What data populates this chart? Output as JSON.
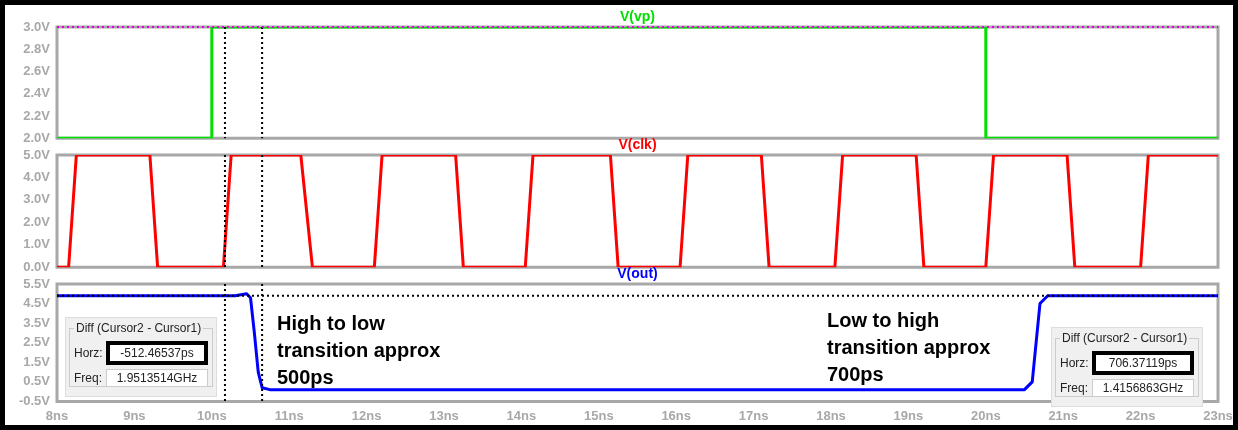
{
  "chart_data": [
    {
      "type": "step",
      "legend": "top",
      "tick_labels": "y",
      "series": [
        {
          "name": "V(vp)",
          "color": "#00e000",
          "x": [
            8,
            10,
            20,
            23
          ],
          "values": [
            2,
            3,
            2,
            2
          ]
        }
      ],
      "xlim": [
        8,
        23
      ],
      "ylim": [
        2,
        3
      ],
      "yticks": [
        {
          "value": 2,
          "label": "2.0V"
        },
        {
          "value": 2.2,
          "label": "2.2V"
        },
        {
          "value": 2.4,
          "label": "2.4V"
        },
        {
          "value": 2.6,
          "label": "2.6V"
        },
        {
          "value": 2.8,
          "label": "2.8V"
        },
        {
          "value": 3,
          "label": "3.0V"
        }
      ],
      "ref_lines": [
        {
          "axis": "x",
          "value": 10.17,
          "color": "#000000",
          "line_style": "dotted"
        },
        {
          "axis": "x",
          "value": 10.65,
          "color": "#000000",
          "line_style": "dotted"
        },
        {
          "axis": "y",
          "value": 3,
          "color": "#e000e0",
          "line_style": "dotted"
        }
      ]
    },
    {
      "type": "line",
      "legend": "top",
      "tick_labels": "y",
      "series": [
        {
          "name": "V(clk)",
          "color": "#ff0000",
          "x": [
            8,
            8.15,
            8.25,
            9.2,
            9.3,
            10.15,
            10.25,
            11.15,
            11.3,
            12.1,
            12.2,
            13.15,
            13.25,
            14.05,
            14.15,
            15.15,
            15.25,
            16.05,
            16.15,
            17.1,
            17.2,
            18.05,
            18.15,
            19.1,
            19.2,
            20.0,
            20.1,
            21.05,
            21.15,
            22.0,
            22.1,
            23
          ],
          "values": [
            0,
            0,
            5,
            5,
            0,
            0,
            5,
            5,
            0,
            0,
            5,
            5,
            0,
            0,
            5,
            5,
            0,
            0,
            5,
            5,
            0,
            0,
            5,
            5,
            0,
            0,
            5,
            5,
            0,
            0,
            5,
            5
          ]
        }
      ],
      "xlim": [
        8,
        23
      ],
      "ylim": [
        0,
        5
      ],
      "yticks": [
        {
          "value": 0,
          "label": "0.0V"
        },
        {
          "value": 1,
          "label": "1.0V"
        },
        {
          "value": 2,
          "label": "2.0V"
        },
        {
          "value": 3,
          "label": "3.0V"
        },
        {
          "value": 4,
          "label": "4.0V"
        },
        {
          "value": 5,
          "label": "5.0V"
        }
      ],
      "ref_lines": [
        {
          "axis": "x",
          "value": 10.17,
          "color": "#000000",
          "line_style": "dotted"
        },
        {
          "axis": "x",
          "value": 10.65,
          "color": "#000000",
          "line_style": "dotted"
        }
      ]
    },
    {
      "type": "line",
      "legend": "top",
      "series": [
        {
          "name": "V(out)",
          "color": "#0000ff",
          "x": [
            8,
            10.3,
            10.45,
            10.5,
            10.55,
            10.6,
            10.65,
            10.75,
            20.5,
            20.6,
            20.65,
            20.7,
            20.8,
            23
          ],
          "values": [
            4.9,
            4.9,
            5.0,
            4.8,
            3.0,
            1.0,
            0.2,
            0.1,
            0.1,
            0.5,
            2.5,
            4.5,
            4.9,
            4.9
          ]
        }
      ],
      "xlim": [
        8,
        23
      ],
      "ylim": [
        -0.5,
        5.5
      ],
      "xticks": [
        {
          "value": 8,
          "label": "8ns"
        },
        {
          "value": 9,
          "label": "9ns"
        },
        {
          "value": 10,
          "label": "10ns"
        },
        {
          "value": 11,
          "label": "11ns"
        },
        {
          "value": 12,
          "label": "12ns"
        },
        {
          "value": 13,
          "label": "13ns"
        },
        {
          "value": 14,
          "label": "14ns"
        },
        {
          "value": 15,
          "label": "15ns"
        },
        {
          "value": 16,
          "label": "16ns"
        },
        {
          "value": 17,
          "label": "17ns"
        },
        {
          "value": 18,
          "label": "18ns"
        },
        {
          "value": 19,
          "label": "19ns"
        },
        {
          "value": 20,
          "label": "20ns"
        },
        {
          "value": 21,
          "label": "21ns"
        },
        {
          "value": 22,
          "label": "22ns"
        },
        {
          "value": 23,
          "label": "23ns"
        }
      ],
      "yticks": [
        {
          "value": -0.5,
          "label": "-0.5V"
        },
        {
          "value": 0.5,
          "label": "0.5V"
        },
        {
          "value": 1.5,
          "label": "1.5V"
        },
        {
          "value": 2.5,
          "label": "2.5V"
        },
        {
          "value": 3.5,
          "label": "3.5V"
        },
        {
          "value": 4.5,
          "label": "4.5V"
        },
        {
          "value": 5.5,
          "label": "5.5V"
        }
      ],
      "ref_lines": [
        {
          "axis": "x",
          "value": 10.17,
          "color": "#000000",
          "line_style": "dotted"
        },
        {
          "axis": "x",
          "value": 10.65,
          "color": "#000000",
          "line_style": "dotted"
        },
        {
          "axis": "y",
          "value": 4.9,
          "color": "#000000",
          "line_style": "dotted"
        }
      ],
      "annotations": [
        "High to low transition approx 500ps",
        "Low to high transition approx 700ps",
        "Diff (Cursor2 - Cursor1)",
        "Horz:",
        "-512.46537ps",
        "Freq:",
        "1.9513514GHz",
        "Diff (Cursor2 - Cursor1)",
        "Horz:",
        "706.37119ps",
        "Freq:",
        "1.4156863GHz"
      ]
    }
  ]
}
